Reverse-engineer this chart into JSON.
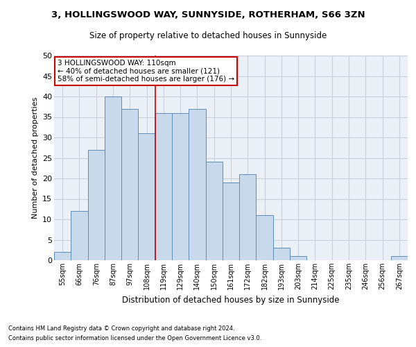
{
  "title1": "3, HOLLINGSWOOD WAY, SUNNYSIDE, ROTHERHAM, S66 3ZN",
  "title2": "Size of property relative to detached houses in Sunnyside",
  "xlabel": "Distribution of detached houses by size in Sunnyside",
  "ylabel": "Number of detached properties",
  "bar_labels": [
    "55sqm",
    "66sqm",
    "76sqm",
    "87sqm",
    "97sqm",
    "108sqm",
    "119sqm",
    "129sqm",
    "140sqm",
    "150sqm",
    "161sqm",
    "172sqm",
    "182sqm",
    "193sqm",
    "203sqm",
    "214sqm",
    "225sqm",
    "235sqm",
    "246sqm",
    "256sqm",
    "267sqm"
  ],
  "bar_values": [
    2,
    12,
    27,
    40,
    37,
    31,
    36,
    36,
    37,
    24,
    19,
    21,
    11,
    3,
    1,
    0,
    0,
    0,
    0,
    0,
    1
  ],
  "bar_color": "#c8d9eb",
  "bar_edge_color": "#5b8db8",
  "grid_color": "#c8d0da",
  "bg_color": "#eaf0f6",
  "annotation_box_text": "3 HOLLINGSWOOD WAY: 110sqm\n← 40% of detached houses are smaller (121)\n58% of semi-detached houses are larger (176) →",
  "annotation_box_color": "#ffffff",
  "annotation_box_edge_color": "#cc0000",
  "red_line_x": 5.5,
  "ylim": [
    0,
    50
  ],
  "yticks": [
    0,
    5,
    10,
    15,
    20,
    25,
    30,
    35,
    40,
    45,
    50
  ],
  "footer1": "Contains HM Land Registry data © Crown copyright and database right 2024.",
  "footer2": "Contains public sector information licensed under the Open Government Licence v3.0."
}
